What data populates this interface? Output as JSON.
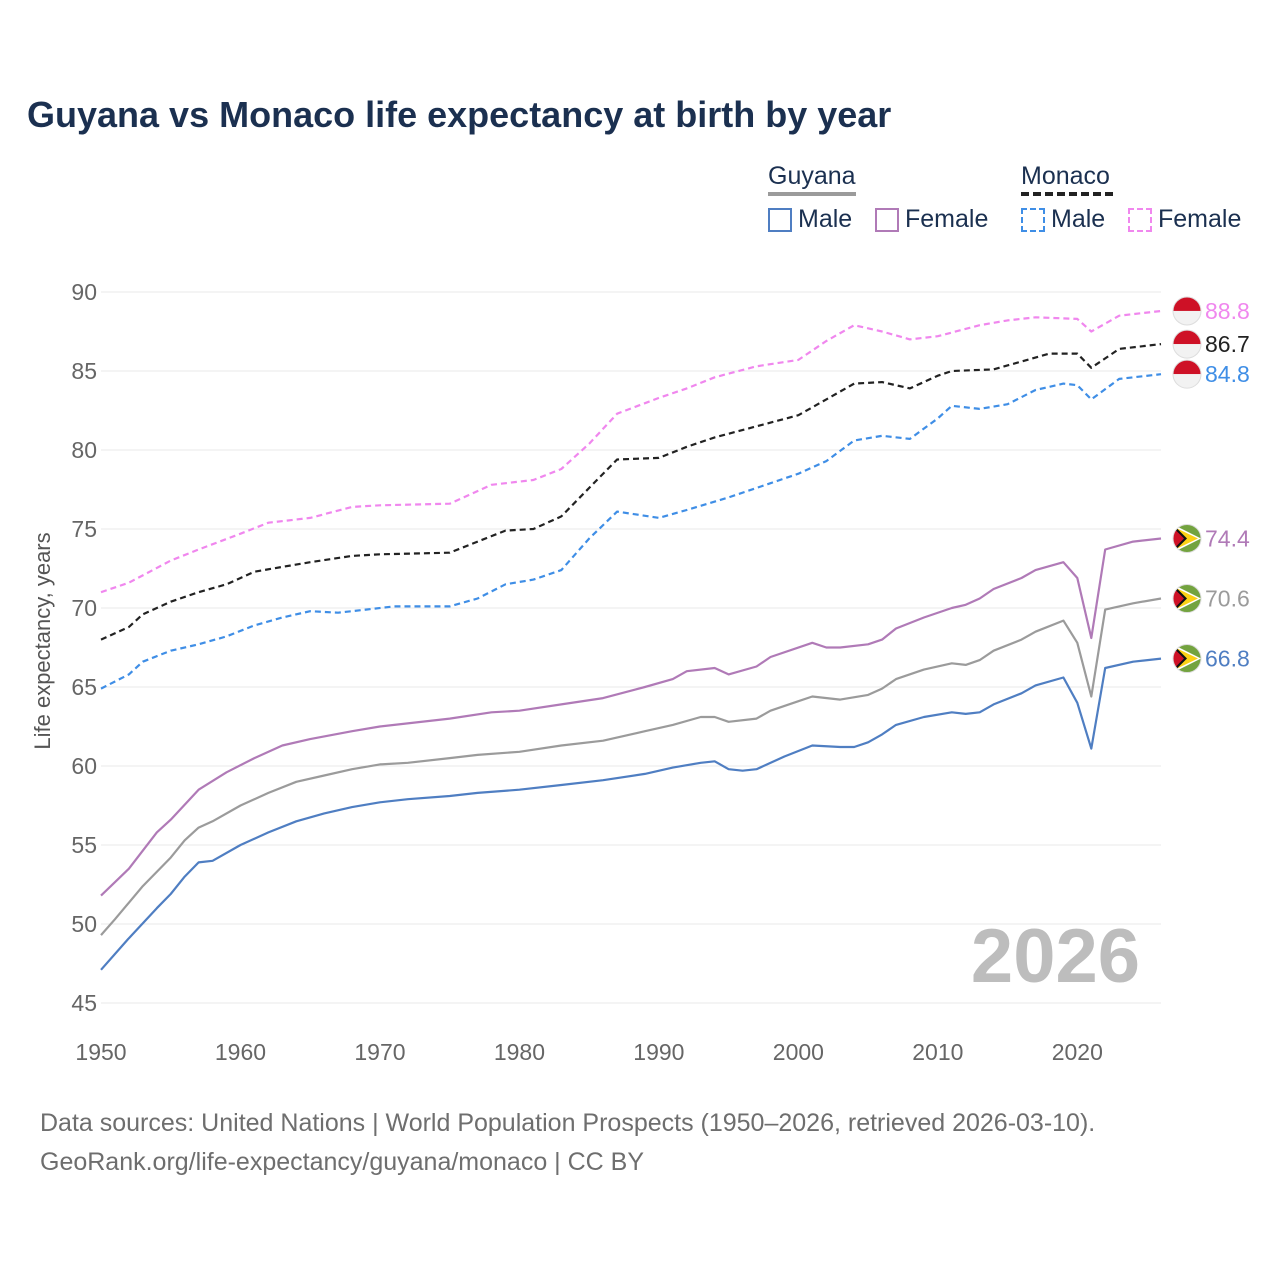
{
  "chart_data": {
    "type": "line",
    "title": "Guyana vs Monaco life expectancy at birth by year",
    "ylabel": "Life expectancy, years",
    "xlabel": "",
    "xlim": [
      1950,
      2026
    ],
    "ylim": [
      45,
      90
    ],
    "x_ticks": [
      "1950",
      "1960",
      "1970",
      "1980",
      "1990",
      "2000",
      "2010",
      "2020"
    ],
    "y_ticks": [
      "45",
      "50",
      "55",
      "60",
      "65",
      "70",
      "75",
      "80",
      "85",
      "90"
    ],
    "legend": {
      "position": "top-right",
      "groups": [
        {
          "name": "Guyana",
          "items": [
            "Male",
            "Female"
          ]
        },
        {
          "name": "Monaco",
          "items": [
            "Male",
            "Female"
          ]
        }
      ]
    },
    "year_annotation": "2026",
    "series": [
      {
        "name": "Monaco Female",
        "country": "Monaco",
        "sex": "Female",
        "color": "#f087ee",
        "dashed": true,
        "end_label": "88.8",
        "points": [
          [
            1950,
            71.0
          ],
          [
            1952,
            71.6
          ],
          [
            1955,
            73.0
          ],
          [
            1957,
            73.7
          ],
          [
            1960,
            74.7
          ],
          [
            1962,
            75.4
          ],
          [
            1965,
            75.7
          ],
          [
            1968,
            76.4
          ],
          [
            1970,
            76.5
          ],
          [
            1975,
            76.6
          ],
          [
            1978,
            77.8
          ],
          [
            1981,
            78.1
          ],
          [
            1983,
            78.8
          ],
          [
            1985,
            80.4
          ],
          [
            1987,
            82.3
          ],
          [
            1990,
            83.3
          ],
          [
            1992,
            83.9
          ],
          [
            1994,
            84.6
          ],
          [
            1997,
            85.3
          ],
          [
            2000,
            85.7
          ],
          [
            2002,
            86.9
          ],
          [
            2004,
            87.9
          ],
          [
            2006,
            87.5
          ],
          [
            2008,
            87.0
          ],
          [
            2010,
            87.2
          ],
          [
            2013,
            87.9
          ],
          [
            2015,
            88.2
          ],
          [
            2017,
            88.4
          ],
          [
            2020,
            88.3
          ],
          [
            2021,
            87.5
          ],
          [
            2023,
            88.5
          ],
          [
            2026,
            88.8
          ]
        ]
      },
      {
        "name": "Monaco Both",
        "country": "Monaco",
        "sex": "Both",
        "color": "#222222",
        "dashed": true,
        "end_label": "86.7",
        "points": [
          [
            1950,
            68.0
          ],
          [
            1952,
            68.8
          ],
          [
            1953,
            69.6
          ],
          [
            1955,
            70.4
          ],
          [
            1957,
            71.0
          ],
          [
            1959,
            71.5
          ],
          [
            1961,
            72.3
          ],
          [
            1963,
            72.6
          ],
          [
            1965,
            72.9
          ],
          [
            1968,
            73.3
          ],
          [
            1970,
            73.4
          ],
          [
            1975,
            73.5
          ],
          [
            1977,
            74.2
          ],
          [
            1979,
            74.9
          ],
          [
            1981,
            75.0
          ],
          [
            1983,
            75.8
          ],
          [
            1985,
            77.6
          ],
          [
            1987,
            79.4
          ],
          [
            1990,
            79.5
          ],
          [
            1992,
            80.2
          ],
          [
            1994,
            80.8
          ],
          [
            1997,
            81.5
          ],
          [
            2000,
            82.2
          ],
          [
            2002,
            83.2
          ],
          [
            2004,
            84.2
          ],
          [
            2006,
            84.3
          ],
          [
            2008,
            83.9
          ],
          [
            2010,
            84.7
          ],
          [
            2011,
            85.0
          ],
          [
            2014,
            85.1
          ],
          [
            2016,
            85.6
          ],
          [
            2018,
            86.1
          ],
          [
            2020,
            86.1
          ],
          [
            2021,
            85.2
          ],
          [
            2023,
            86.4
          ],
          [
            2026,
            86.7
          ]
        ]
      },
      {
        "name": "Monaco Male",
        "country": "Monaco",
        "sex": "Male",
        "color": "#3f8ee6",
        "dashed": true,
        "end_label": "84.8",
        "points": [
          [
            1950,
            64.9
          ],
          [
            1952,
            65.8
          ],
          [
            1953,
            66.6
          ],
          [
            1955,
            67.3
          ],
          [
            1957,
            67.7
          ],
          [
            1959,
            68.2
          ],
          [
            1961,
            68.9
          ],
          [
            1963,
            69.4
          ],
          [
            1965,
            69.8
          ],
          [
            1967,
            69.7
          ],
          [
            1969,
            69.9
          ],
          [
            1971,
            70.1
          ],
          [
            1975,
            70.1
          ],
          [
            1977,
            70.6
          ],
          [
            1979,
            71.5
          ],
          [
            1981,
            71.8
          ],
          [
            1983,
            72.4
          ],
          [
            1985,
            74.4
          ],
          [
            1987,
            76.1
          ],
          [
            1990,
            75.7
          ],
          [
            1992,
            76.2
          ],
          [
            1995,
            77.0
          ],
          [
            1998,
            77.9
          ],
          [
            2000,
            78.5
          ],
          [
            2002,
            79.3
          ],
          [
            2004,
            80.6
          ],
          [
            2006,
            80.9
          ],
          [
            2008,
            80.7
          ],
          [
            2010,
            82.0
          ],
          [
            2011,
            82.8
          ],
          [
            2013,
            82.6
          ],
          [
            2015,
            82.9
          ],
          [
            2017,
            83.8
          ],
          [
            2019,
            84.2
          ],
          [
            2020,
            84.1
          ],
          [
            2021,
            83.2
          ],
          [
            2023,
            84.5
          ],
          [
            2026,
            84.8
          ]
        ]
      },
      {
        "name": "Guyana Female",
        "country": "Guyana",
        "sex": "Female",
        "color": "#b07ab7",
        "dashed": false,
        "end_label": "74.4",
        "points": [
          [
            1950,
            51.8
          ],
          [
            1952,
            53.5
          ],
          [
            1954,
            55.8
          ],
          [
            1955,
            56.6
          ],
          [
            1957,
            58.5
          ],
          [
            1959,
            59.6
          ],
          [
            1961,
            60.5
          ],
          [
            1963,
            61.3
          ],
          [
            1965,
            61.7
          ],
          [
            1968,
            62.2
          ],
          [
            1970,
            62.5
          ],
          [
            1975,
            63.0
          ],
          [
            1978,
            63.4
          ],
          [
            1980,
            63.5
          ],
          [
            1983,
            63.9
          ],
          [
            1986,
            64.3
          ],
          [
            1989,
            65.0
          ],
          [
            1991,
            65.5
          ],
          [
            1992,
            66.0
          ],
          [
            1994,
            66.2
          ],
          [
            1995,
            65.8
          ],
          [
            1997,
            66.3
          ],
          [
            1998,
            66.9
          ],
          [
            2001,
            67.8
          ],
          [
            2002,
            67.5
          ],
          [
            2003,
            67.5
          ],
          [
            2005,
            67.7
          ],
          [
            2006,
            68.0
          ],
          [
            2007,
            68.7
          ],
          [
            2009,
            69.4
          ],
          [
            2011,
            70.0
          ],
          [
            2012,
            70.2
          ],
          [
            2013,
            70.6
          ],
          [
            2014,
            71.2
          ],
          [
            2016,
            71.9
          ],
          [
            2017,
            72.4
          ],
          [
            2019,
            72.9
          ],
          [
            2020,
            71.9
          ],
          [
            2021,
            68.1
          ],
          [
            2022,
            73.7
          ],
          [
            2024,
            74.2
          ],
          [
            2026,
            74.4
          ]
        ]
      },
      {
        "name": "Guyana Both",
        "country": "Guyana",
        "sex": "Both",
        "color": "#9b9b9b",
        "dashed": false,
        "end_label": "70.6",
        "points": [
          [
            1950,
            49.3
          ],
          [
            1951,
            50.3
          ],
          [
            1953,
            52.4
          ],
          [
            1955,
            54.2
          ],
          [
            1956,
            55.3
          ],
          [
            1957,
            56.1
          ],
          [
            1958,
            56.5
          ],
          [
            1960,
            57.5
          ],
          [
            1962,
            58.3
          ],
          [
            1964,
            59.0
          ],
          [
            1966,
            59.4
          ],
          [
            1968,
            59.8
          ],
          [
            1970,
            60.1
          ],
          [
            1972,
            60.2
          ],
          [
            1975,
            60.5
          ],
          [
            1977,
            60.7
          ],
          [
            1980,
            60.9
          ],
          [
            1983,
            61.3
          ],
          [
            1986,
            61.6
          ],
          [
            1989,
            62.2
          ],
          [
            1991,
            62.6
          ],
          [
            1993,
            63.1
          ],
          [
            1994,
            63.1
          ],
          [
            1995,
            62.8
          ],
          [
            1997,
            63.0
          ],
          [
            1998,
            63.5
          ],
          [
            2000,
            64.1
          ],
          [
            2001,
            64.4
          ],
          [
            2003,
            64.2
          ],
          [
            2005,
            64.5
          ],
          [
            2006,
            64.9
          ],
          [
            2007,
            65.5
          ],
          [
            2009,
            66.1
          ],
          [
            2011,
            66.5
          ],
          [
            2012,
            66.4
          ],
          [
            2013,
            66.7
          ],
          [
            2014,
            67.3
          ],
          [
            2016,
            68.0
          ],
          [
            2017,
            68.5
          ],
          [
            2019,
            69.2
          ],
          [
            2020,
            67.8
          ],
          [
            2021,
            64.4
          ],
          [
            2022,
            69.9
          ],
          [
            2024,
            70.3
          ],
          [
            2026,
            70.6
          ]
        ]
      },
      {
        "name": "Guyana Male",
        "country": "Guyana",
        "sex": "Male",
        "color": "#4f7ec2",
        "dashed": false,
        "end_label": "66.8",
        "points": [
          [
            1950,
            47.1
          ],
          [
            1952,
            49.1
          ],
          [
            1954,
            51.0
          ],
          [
            1955,
            51.9
          ],
          [
            1956,
            53.0
          ],
          [
            1957,
            53.9
          ],
          [
            1958,
            54.0
          ],
          [
            1960,
            55.0
          ],
          [
            1962,
            55.8
          ],
          [
            1964,
            56.5
          ],
          [
            1966,
            57.0
          ],
          [
            1968,
            57.4
          ],
          [
            1970,
            57.7
          ],
          [
            1972,
            57.9
          ],
          [
            1975,
            58.1
          ],
          [
            1977,
            58.3
          ],
          [
            1980,
            58.5
          ],
          [
            1983,
            58.8
          ],
          [
            1986,
            59.1
          ],
          [
            1989,
            59.5
          ],
          [
            1991,
            59.9
          ],
          [
            1993,
            60.2
          ],
          [
            1994,
            60.3
          ],
          [
            1995,
            59.8
          ],
          [
            1996,
            59.7
          ],
          [
            1997,
            59.8
          ],
          [
            1999,
            60.6
          ],
          [
            2001,
            61.3
          ],
          [
            2003,
            61.2
          ],
          [
            2004,
            61.2
          ],
          [
            2005,
            61.5
          ],
          [
            2006,
            62.0
          ],
          [
            2007,
            62.6
          ],
          [
            2009,
            63.1
          ],
          [
            2011,
            63.4
          ],
          [
            2012,
            63.3
          ],
          [
            2013,
            63.4
          ],
          [
            2014,
            63.9
          ],
          [
            2016,
            64.6
          ],
          [
            2017,
            65.1
          ],
          [
            2019,
            65.6
          ],
          [
            2020,
            64.0
          ],
          [
            2021,
            61.1
          ],
          [
            2022,
            66.2
          ],
          [
            2024,
            66.6
          ],
          [
            2026,
            66.8
          ]
        ]
      }
    ]
  },
  "legend_labels": {
    "guyana": "Guyana",
    "monaco": "Monaco",
    "male": "Male",
    "female": "Female"
  },
  "source": {
    "line1": "Data sources: United Nations | World Population Prospects (1950–2026, retrieved 2026-03-10).",
    "line2": "GeoRank.org/life-expectancy/guyana/monaco | CC BY"
  },
  "colors": {
    "title": "#1b3050",
    "grid": "#e8e8e8",
    "monaco_flag_red": "#ce1126",
    "guyana_flag_green": "#73a33f",
    "guyana_flag_yellow": "#fcd116",
    "guyana_flag_red": "#ce1126"
  }
}
